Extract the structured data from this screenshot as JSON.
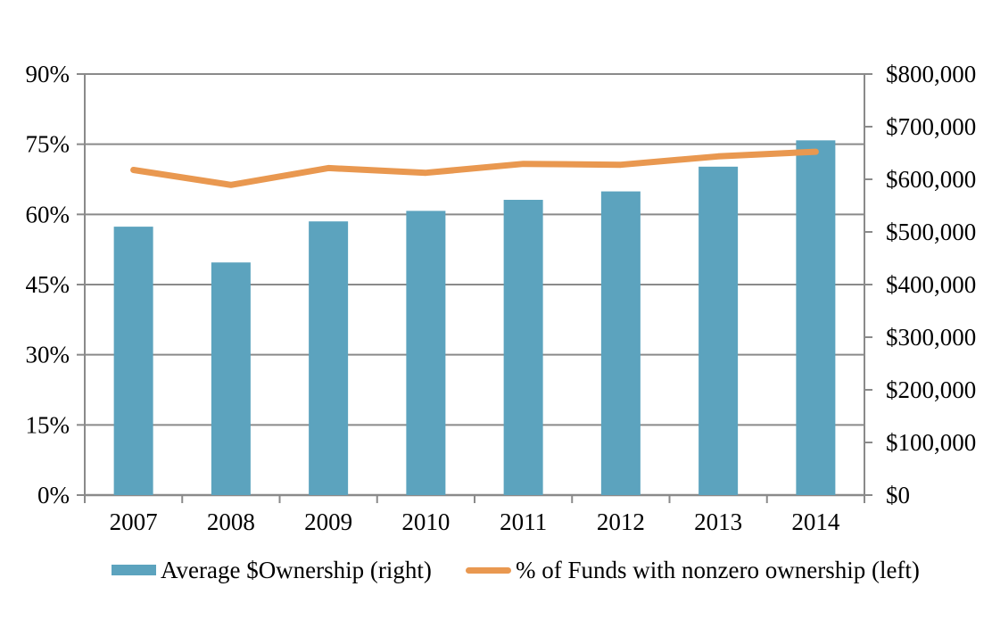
{
  "figure": {
    "background": "#ffffff",
    "text_color": "#000000",
    "grid_color": "#8a8a8a",
    "axis_color": "#8a8a8a"
  },
  "chart_data": {
    "type": "bar",
    "subtype": "combo-bar-line-dual-axis",
    "title": "",
    "categories": [
      "2007",
      "2008",
      "2009",
      "2010",
      "2011",
      "2012",
      "2013",
      "2014"
    ],
    "series": [
      {
        "name": "Average $Ownership (right)",
        "type": "bar",
        "axis": "right",
        "color": "#5CA3BE",
        "values": [
          510000,
          442000,
          520000,
          540000,
          561000,
          577000,
          624000,
          674000
        ]
      },
      {
        "name": "% of Funds with nonzero ownership (left)",
        "type": "line",
        "axis": "left",
        "color": "#E99850",
        "values": [
          69.5,
          66.3,
          69.9,
          68.9,
          70.8,
          70.6,
          72.4,
          73.4
        ]
      }
    ],
    "left_axis": {
      "min": 0,
      "max": 90,
      "step": 15,
      "tick_labels": [
        "0%",
        "15%",
        "30%",
        "45%",
        "60%",
        "75%",
        "90%"
      ]
    },
    "right_axis": {
      "min": 0,
      "max": 800000,
      "step": 100000,
      "tick_labels": [
        "$0",
        "$100,000",
        "$200,000",
        "$300,000",
        "$400,000",
        "$500,000",
        "$600,000",
        "$700,000",
        "$800,000"
      ]
    },
    "grid": "horizontal gridlines at left-axis 15% ticks",
    "legend_position": "bottom",
    "xlabel": "",
    "ylabel": ""
  },
  "legend": {
    "bar_label": "Average $Ownership (right)",
    "line_label": "% of Funds with nonzero ownership (left)"
  }
}
